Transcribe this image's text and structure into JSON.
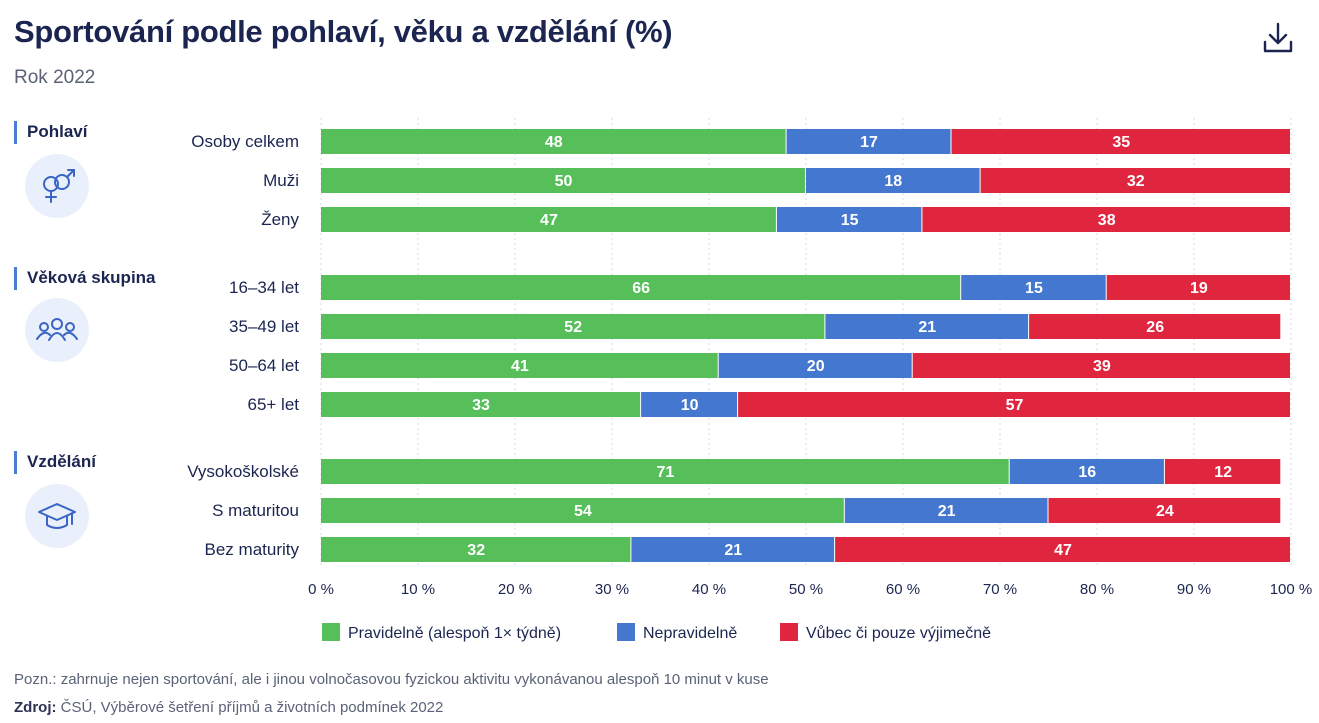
{
  "header": {
    "title": "Sportování podle pohlaví, věku a vzdělání (%)",
    "subtitle": "Rok 2022",
    "download_icon": "download-icon"
  },
  "colors": {
    "regular": "#56bf5a",
    "irregular": "#4377d0",
    "never": "#e0263f",
    "icon_bg": "#eaf0fb",
    "group_bar": "#4a7cd6"
  },
  "chart_data": {
    "type": "bar",
    "orientation": "horizontal",
    "stacked": true,
    "xlim": [
      0,
      100
    ],
    "xticks": [
      "0 %",
      "10 %",
      "20 %",
      "30 %",
      "40 %",
      "50 %",
      "60 %",
      "70 %",
      "80 %",
      "90 %",
      "100 %"
    ],
    "grid": true,
    "legend_position": "bottom",
    "series": [
      {
        "name": "Pravidelně (alespoň 1× týdně)",
        "color": "#56bf5a"
      },
      {
        "name": "Nepravidelně",
        "color": "#4377d0"
      },
      {
        "name": "Vůbec či pouze výjimečně",
        "color": "#e0263f"
      }
    ],
    "groups": [
      {
        "label": "Pohlaví",
        "icon": "gender-icon",
        "rows": [
          {
            "category": "Osoby celkem",
            "values": [
              48,
              17,
              35
            ]
          },
          {
            "category": "Muži",
            "values": [
              50,
              18,
              32
            ]
          },
          {
            "category": "Ženy",
            "values": [
              47,
              15,
              38
            ]
          }
        ]
      },
      {
        "label": "Věková skupina",
        "icon": "people-group-icon",
        "rows": [
          {
            "category": "16–34 let",
            "values": [
              66,
              15,
              19
            ]
          },
          {
            "category": "35–49 let",
            "values": [
              52,
              21,
              26
            ]
          },
          {
            "category": "50–64 let",
            "values": [
              41,
              20,
              39
            ]
          },
          {
            "category": "65+ let",
            "values": [
              33,
              10,
              57
            ]
          }
        ]
      },
      {
        "label": "Vzdělání",
        "icon": "graduation-cap-icon",
        "rows": [
          {
            "category": "Vysokoškolské",
            "values": [
              71,
              16,
              12
            ]
          },
          {
            "category": "S maturitou",
            "values": [
              54,
              21,
              24
            ]
          },
          {
            "category": "Bez maturity",
            "values": [
              32,
              21,
              47
            ]
          }
        ]
      }
    ]
  },
  "footer": {
    "note": "Pozn.: zahrnuje nejen sportování, ale i jinou volnočasovou fyzickou aktivitu vykonávanou alespoň 10 minut v kuse",
    "source_label": "Zdroj:",
    "source_text": " ČSÚ, Výběrové šetření příjmů a životních podmínek 2022"
  }
}
